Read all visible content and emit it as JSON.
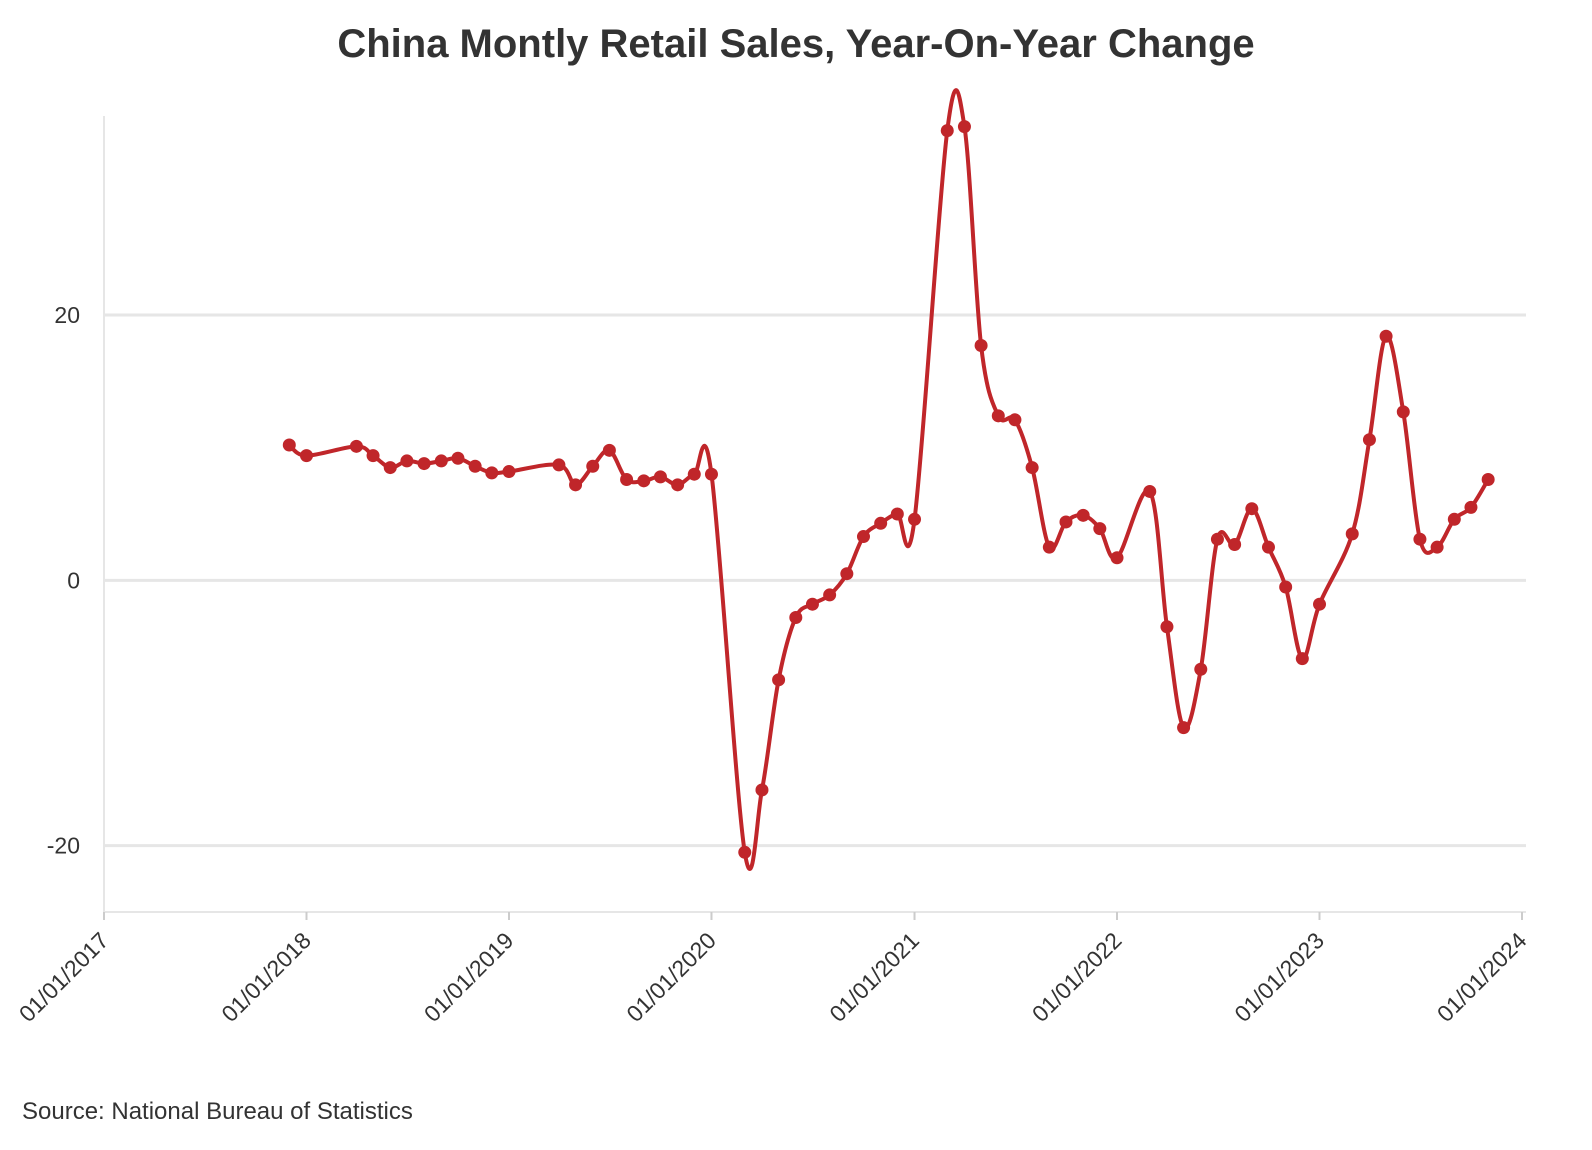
{
  "chart_data": {
    "type": "line",
    "title": "China Montly Retail Sales, Year-On-Year Change",
    "source": "Source: National Bureau of Statistics",
    "xlabel": "",
    "ylabel": "",
    "x_range": [
      "2017-01-01",
      "2024-01-01"
    ],
    "ylim": [
      -25,
      35
    ],
    "y_ticks": [
      -20,
      0,
      20
    ],
    "x_tick_dates": [
      "2017-01-01",
      "2018-01-01",
      "2019-01-01",
      "2020-01-01",
      "2021-01-01",
      "2022-01-01",
      "2023-01-01",
      "2024-01-01"
    ],
    "x_tick_labels": [
      "01/01/2017",
      "01/01/2018",
      "01/01/2019",
      "01/01/2020",
      "01/01/2021",
      "01/01/2022",
      "01/01/2023",
      "01/01/2024"
    ],
    "grid": true,
    "legend": "none",
    "line_color": "#c0262a",
    "series": [
      {
        "points": [
          [
            "2017-12-01",
            10.2
          ],
          [
            "2018-01-01",
            9.4
          ],
          [
            "2018-04-01",
            10.1
          ],
          [
            "2018-05-01",
            9.4
          ],
          [
            "2018-06-01",
            8.5
          ],
          [
            "2018-07-01",
            9.0
          ],
          [
            "2018-08-01",
            8.8
          ],
          [
            "2018-09-01",
            9.0
          ],
          [
            "2018-10-01",
            9.2
          ],
          [
            "2018-11-01",
            8.6
          ],
          [
            "2018-12-01",
            8.1
          ],
          [
            "2019-01-01",
            8.2
          ],
          [
            "2019-04-01",
            8.7
          ],
          [
            "2019-05-01",
            7.2
          ],
          [
            "2019-06-01",
            8.6
          ],
          [
            "2019-07-01",
            9.8
          ],
          [
            "2019-08-01",
            7.6
          ],
          [
            "2019-09-01",
            7.5
          ],
          [
            "2019-10-01",
            7.8
          ],
          [
            "2019-11-01",
            7.2
          ],
          [
            "2019-12-01",
            8.0
          ],
          [
            "2020-01-01",
            8.0
          ],
          [
            "2020-03-01",
            -20.5
          ],
          [
            "2020-04-01",
            -15.8
          ],
          [
            "2020-05-01",
            -7.5
          ],
          [
            "2020-06-01",
            -2.8
          ],
          [
            "2020-07-01",
            -1.8
          ],
          [
            "2020-08-01",
            -1.1
          ],
          [
            "2020-09-01",
            0.5
          ],
          [
            "2020-10-01",
            3.3
          ],
          [
            "2020-11-01",
            4.3
          ],
          [
            "2020-12-01",
            5.0
          ],
          [
            "2021-01-01",
            4.6
          ],
          [
            "2021-03-01",
            33.9
          ],
          [
            "2021-04-01",
            34.2
          ],
          [
            "2021-05-01",
            17.7
          ],
          [
            "2021-06-01",
            12.4
          ],
          [
            "2021-07-01",
            12.1
          ],
          [
            "2021-08-01",
            8.5
          ],
          [
            "2021-09-01",
            2.5
          ],
          [
            "2021-10-01",
            4.4
          ],
          [
            "2021-11-01",
            4.9
          ],
          [
            "2021-12-01",
            3.9
          ],
          [
            "2022-01-01",
            1.7
          ],
          [
            "2022-03-01",
            6.7
          ],
          [
            "2022-04-01",
            -3.5
          ],
          [
            "2022-05-01",
            -11.1
          ],
          [
            "2022-06-01",
            -6.7
          ],
          [
            "2022-07-01",
            3.1
          ],
          [
            "2022-08-01",
            2.7
          ],
          [
            "2022-09-01",
            5.4
          ],
          [
            "2022-10-01",
            2.5
          ],
          [
            "2022-11-01",
            -0.5
          ],
          [
            "2022-12-01",
            -5.9
          ],
          [
            "2023-01-01",
            -1.8
          ],
          [
            "2023-03-01",
            3.5
          ],
          [
            "2023-04-01",
            10.6
          ],
          [
            "2023-05-01",
            18.4
          ],
          [
            "2023-06-01",
            12.7
          ],
          [
            "2023-07-01",
            3.1
          ],
          [
            "2023-08-01",
            2.5
          ],
          [
            "2023-09-01",
            4.6
          ],
          [
            "2023-10-01",
            5.5
          ],
          [
            "2023-11-01",
            7.6
          ]
        ]
      }
    ]
  }
}
